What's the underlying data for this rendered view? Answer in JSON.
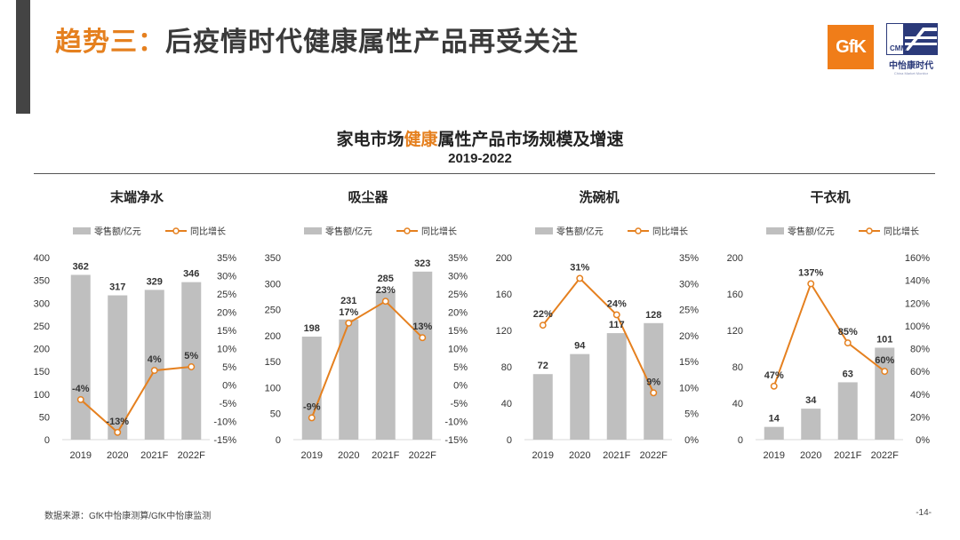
{
  "slide": {
    "title_prefix": "趋势三：",
    "title_main": "后疫情时代健康属性产品再受关注",
    "logo_gfk": "GfK",
    "logo_cmm": "CMM",
    "logo_cmm_cn": "中怡康时代",
    "logo_cmm_en": "China Market Monitor",
    "chart_title_pre": "家电市场",
    "chart_title_hl": "健康",
    "chart_title_post": "属性产品市场规模及增速",
    "chart_subtitle": "2019-2022",
    "footer_source": "数据来源：GfK中怡康测算/GfK中怡康监测",
    "page_number": "-14-"
  },
  "colors": {
    "accent": "#E5801F",
    "bar": "#BFBFBF",
    "line": "#E5801F",
    "text": "#333333"
  },
  "chart_data": [
    {
      "type": "bar",
      "title": "末端净水",
      "categories": [
        "2019",
        "2020",
        "2021F",
        "2022F"
      ],
      "series": [
        {
          "name": "零售额/亿元",
          "type": "bar",
          "axis": "left",
          "values": [
            362,
            317,
            329,
            346
          ],
          "labels": [
            "362",
            "317",
            "329",
            "346"
          ]
        },
        {
          "name": "同比增长",
          "type": "line",
          "axis": "right",
          "values": [
            -4,
            -13,
            4,
            5
          ],
          "labels": [
            "-4%",
            "-13%",
            "4%",
            "5%"
          ]
        }
      ],
      "ylim_left": [
        0,
        400
      ],
      "yticks_left": [
        0,
        50,
        100,
        150,
        200,
        250,
        300,
        350,
        400
      ],
      "yticks_left_labels": [
        "0",
        "50",
        "100",
        "150",
        "200",
        "250",
        "300",
        "350",
        "400"
      ],
      "ylim_right": [
        -15,
        35
      ],
      "yticks_right": [
        -15,
        -10,
        -5,
        0,
        5,
        10,
        15,
        20,
        25,
        30,
        35
      ],
      "yticks_right_labels": [
        "-15%",
        "-10%",
        "-5%",
        "0%",
        "5%",
        "10%",
        "15%",
        "20%",
        "25%",
        "30%",
        "35%"
      ],
      "legend_position": "top",
      "grid": false
    },
    {
      "type": "bar",
      "title": "吸尘器",
      "categories": [
        "2019",
        "2020",
        "2021F",
        "2022F"
      ],
      "series": [
        {
          "name": "零售额/亿元",
          "type": "bar",
          "axis": "left",
          "values": [
            198,
            231,
            285,
            323
          ],
          "labels": [
            "198",
            "231",
            "285",
            "323"
          ]
        },
        {
          "name": "同比增长",
          "type": "line",
          "axis": "right",
          "values": [
            -9,
            17,
            23,
            13
          ],
          "labels": [
            "-9%",
            "17%",
            "23%",
            "13%"
          ]
        }
      ],
      "ylim_left": [
        0,
        350
      ],
      "yticks_left": [
        0,
        50,
        100,
        150,
        200,
        250,
        300,
        350
      ],
      "yticks_left_labels": [
        "0",
        "50",
        "100",
        "150",
        "200",
        "250",
        "300",
        "350"
      ],
      "ylim_right": [
        -15,
        35
      ],
      "yticks_right": [
        -15,
        -10,
        -5,
        0,
        5,
        10,
        15,
        20,
        25,
        30,
        35
      ],
      "yticks_right_labels": [
        "-15%",
        "-10%",
        "-5%",
        "0%",
        "5%",
        "10%",
        "15%",
        "20%",
        "25%",
        "30%",
        "35%"
      ],
      "legend_position": "top",
      "grid": false
    },
    {
      "type": "bar",
      "title": "洗碗机",
      "categories": [
        "2019",
        "2020",
        "2021F",
        "2022F"
      ],
      "series": [
        {
          "name": "零售额/亿元",
          "type": "bar",
          "axis": "left",
          "values": [
            72,
            94,
            117,
            128
          ],
          "labels": [
            "72",
            "94",
            "117",
            "128"
          ]
        },
        {
          "name": "同比增长",
          "type": "line",
          "axis": "right",
          "values": [
            22,
            31,
            24,
            9
          ],
          "labels": [
            "22%",
            "31%",
            "24%",
            "9%"
          ]
        }
      ],
      "ylim_left": [
        0,
        200
      ],
      "yticks_left": [
        0,
        40,
        80,
        120,
        160,
        200
      ],
      "yticks_left_labels": [
        "0",
        "40",
        "80",
        "120",
        "160",
        "200"
      ],
      "ylim_right": [
        0,
        35
      ],
      "yticks_right": [
        0,
        5,
        10,
        15,
        20,
        25,
        30,
        35
      ],
      "yticks_right_labels": [
        "0%",
        "5%",
        "10%",
        "15%",
        "20%",
        "25%",
        "30%",
        "35%"
      ],
      "legend_position": "top",
      "grid": false
    },
    {
      "type": "bar",
      "title": "干衣机",
      "categories": [
        "2019",
        "2020",
        "2021F",
        "2022F"
      ],
      "series": [
        {
          "name": "零售额/亿元",
          "type": "bar",
          "axis": "left",
          "values": [
            14,
            34,
            63,
            101
          ],
          "labels": [
            "14",
            "34",
            "63",
            "101"
          ]
        },
        {
          "name": "同比增长",
          "type": "line",
          "axis": "right",
          "values": [
            47,
            137,
            85,
            60
          ],
          "labels": [
            "47%",
            "137%",
            "85%",
            "60%"
          ]
        }
      ],
      "ylim_left": [
        0,
        200
      ],
      "yticks_left": [
        0,
        40,
        80,
        120,
        160,
        200
      ],
      "yticks_left_labels": [
        "0",
        "40",
        "80",
        "120",
        "160",
        "200"
      ],
      "ylim_right": [
        0,
        160
      ],
      "yticks_right": [
        0,
        20,
        40,
        60,
        80,
        100,
        120,
        140,
        160
      ],
      "yticks_right_labels": [
        "0%",
        "20%",
        "40%",
        "60%",
        "80%",
        "100%",
        "120%",
        "140%",
        "160%"
      ],
      "legend_position": "top",
      "grid": false
    }
  ]
}
